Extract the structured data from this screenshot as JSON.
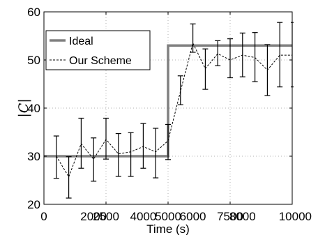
{
  "chart_data": {
    "type": "line",
    "title": "",
    "xlabel": "Time (s)",
    "ylabel": "|C|",
    "xlim": [
      0,
      10000
    ],
    "ylim": [
      20,
      60
    ],
    "xticks": [
      "0",
      "2500",
      "5000",
      "7500",
      "10000"
    ],
    "xtick_minor_labels": [
      "2000",
      "4000",
      "6000",
      "8000"
    ],
    "yticks": [
      "20",
      "30",
      "40",
      "50",
      "60"
    ],
    "grid": true,
    "legend_position": "top-left",
    "series": [
      {
        "name": "Ideal",
        "style": "solid",
        "color": "#808080",
        "x": [
          0,
          5000,
          5000,
          10000
        ],
        "y": [
          30,
          30,
          53,
          53
        ]
      },
      {
        "name": "Our Scheme",
        "style": "dashed",
        "color": "#000000",
        "x": [
          500,
          1000,
          1500,
          2000,
          2500,
          3000,
          3500,
          4000,
          4500,
          5000,
          5500,
          6000,
          6500,
          7000,
          7500,
          8000,
          8500,
          9000,
          9500,
          10000
        ],
        "y": [
          30,
          25.7,
          32.6,
          29.4,
          33.5,
          30.5,
          30.9,
          32,
          30.9,
          33.2,
          43.5,
          53.5,
          48.2,
          51.3,
          50,
          51,
          50.5,
          47.9,
          51,
          51
        ],
        "yerr_low": [
          25.4,
          21.3,
          27.5,
          24.8,
          29.4,
          25.8,
          25.8,
          27.5,
          25.5,
          29.3,
          40.7,
          51.6,
          43.9,
          48.8,
          46.3,
          46.5,
          45.5,
          42.6,
          44.4,
          44.4
        ],
        "yerr_high": [
          34.2,
          29.9,
          37.9,
          33.8,
          37.9,
          34.7,
          34.9,
          36.8,
          35.8,
          36.6,
          46.7,
          57.5,
          52.3,
          54,
          54.4,
          55.6,
          55.7,
          53.2,
          57.8,
          57.8
        ]
      }
    ]
  }
}
